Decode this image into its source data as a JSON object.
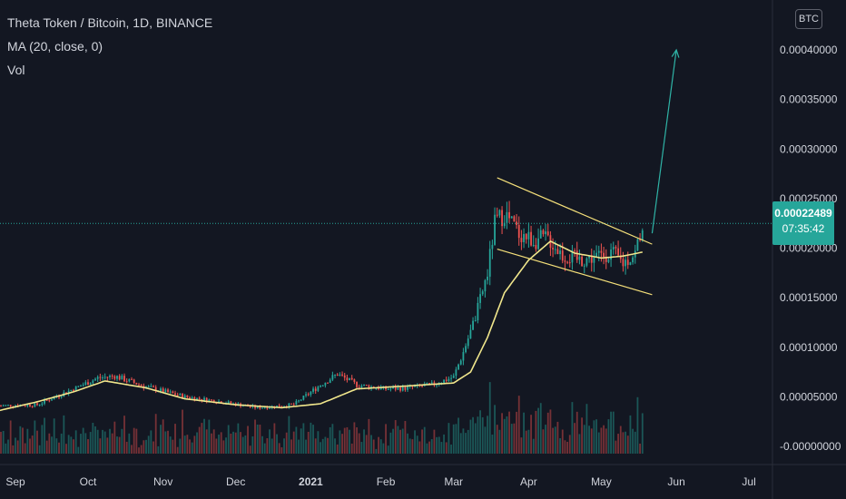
{
  "legend": {
    "symbol": "Theta Token / Bitcoin, 1D, BINANCE",
    "ma": "MA (20, close, 0)",
    "vol": "Vol"
  },
  "currency_badge": "BTC",
  "last_price": {
    "value": "0.00022489",
    "countdown": "07:35:42"
  },
  "colors": {
    "background": "#131722",
    "up": "#26a69a",
    "down": "#ef5350",
    "ma": "#f0e68c",
    "trendline": "#f5e07a",
    "arrow": "#2fb3a6",
    "price_line": "#26a69a"
  },
  "chart_data": {
    "type": "candlestick",
    "interval": "1D",
    "ylim": [
      -7e-06,
      0.00041
    ],
    "y_ticks": [
      "0.00040000",
      "0.00035000",
      "0.00030000",
      "0.00025000",
      "0.00020000",
      "0.00015000",
      "0.00010000",
      "0.00005000",
      "-0.00000000"
    ],
    "x_ticks": [
      "Sep",
      "Oct",
      "Nov",
      "Dec",
      "2021",
      "Feb",
      "Mar",
      "Apr",
      "May",
      "Jun",
      "Jul"
    ],
    "x_tick_bold": [
      "2021"
    ],
    "price_path": [
      [
        "Aug 25",
        4.1e-05
      ],
      [
        "Sep 10",
        4.2e-05
      ],
      [
        "Sep 25",
        5.8e-05
      ],
      [
        "Oct 5",
        6.9e-05
      ],
      [
        "Oct 12",
        7.1e-05
      ],
      [
        "Oct 25",
        6e-05
      ],
      [
        "Nov 10",
        5e-05
      ],
      [
        "Nov 25",
        4.5e-05
      ],
      [
        "Dec 10",
        3.9e-05
      ],
      [
        "Dec 25",
        4.2e-05
      ],
      [
        "Jan 5",
        6.2e-05
      ],
      [
        "Jan 12",
        7.3e-05
      ],
      [
        "Jan 20",
        6.2e-05
      ],
      [
        "Feb 1",
        5.8e-05
      ],
      [
        "Feb 10",
        5.9e-05
      ],
      [
        "Feb 20",
        6.2e-05
      ],
      [
        "Mar 1",
        7e-05
      ],
      [
        "Mar 5",
        9.5e-05
      ],
      [
        "Mar 10",
        0.00013
      ],
      [
        "Mar 15",
        0.000175
      ],
      [
        "Mar 18",
        0.000225
      ],
      [
        "Mar 22",
        0.000235
      ],
      [
        "Mar 28",
        0.000215
      ],
      [
        "Apr 3",
        0.000208
      ],
      [
        "Apr 9",
        0.00021
      ],
      [
        "Apr 15",
        0.000193
      ],
      [
        "Apr 22",
        0.000188
      ],
      [
        "Apr 30",
        0.000192
      ],
      [
        "May 5",
        0.000196
      ],
      [
        "May 10",
        0.000185
      ],
      [
        "May 15",
        0.000195
      ],
      [
        "May 18",
        0.000225
      ]
    ],
    "ma20": [
      [
        "Aug 25",
        3.6e-05
      ],
      [
        "Sep 10",
        4.5e-05
      ],
      [
        "Sep 25",
        5.5e-05
      ],
      [
        "Oct 8",
        6.6e-05
      ],
      [
        "Oct 25",
        5.9e-05
      ],
      [
        "Nov 10",
        4.8e-05
      ],
      [
        "Dec 1",
        4.2e-05
      ],
      [
        "Dec 20",
        3.9e-05
      ],
      [
        "Jan 5",
        4.3e-05
      ],
      [
        "Jan 20",
        5.8e-05
      ],
      [
        "Feb 10",
        6.1e-05
      ],
      [
        "Mar 1",
        6.4e-05
      ],
      [
        "Mar 8",
        7.5e-05
      ],
      [
        "Mar 15",
        0.00011
      ],
      [
        "Mar 22",
        0.000155
      ],
      [
        "Apr 1",
        0.000188
      ],
      [
        "Apr 10",
        0.000207
      ],
      [
        "Apr 20",
        0.000195
      ],
      [
        "May 1",
        0.00019
      ],
      [
        "May 10",
        0.000192
      ],
      [
        "May 18",
        0.000196
      ]
    ],
    "annotations": {
      "channel_upper": [
        [
          "Mar 19",
          0.000271
        ],
        [
          "May 22",
          0.000204
        ]
      ],
      "channel_lower": [
        [
          "Mar 19",
          0.000199
        ],
        [
          "May 22",
          0.000153
        ]
      ],
      "breakout_arrow": [
        [
          "May 22",
          0.000215
        ],
        [
          "Jun 1",
          0.0004
        ]
      ],
      "last_price_line": 0.00022489
    }
  }
}
